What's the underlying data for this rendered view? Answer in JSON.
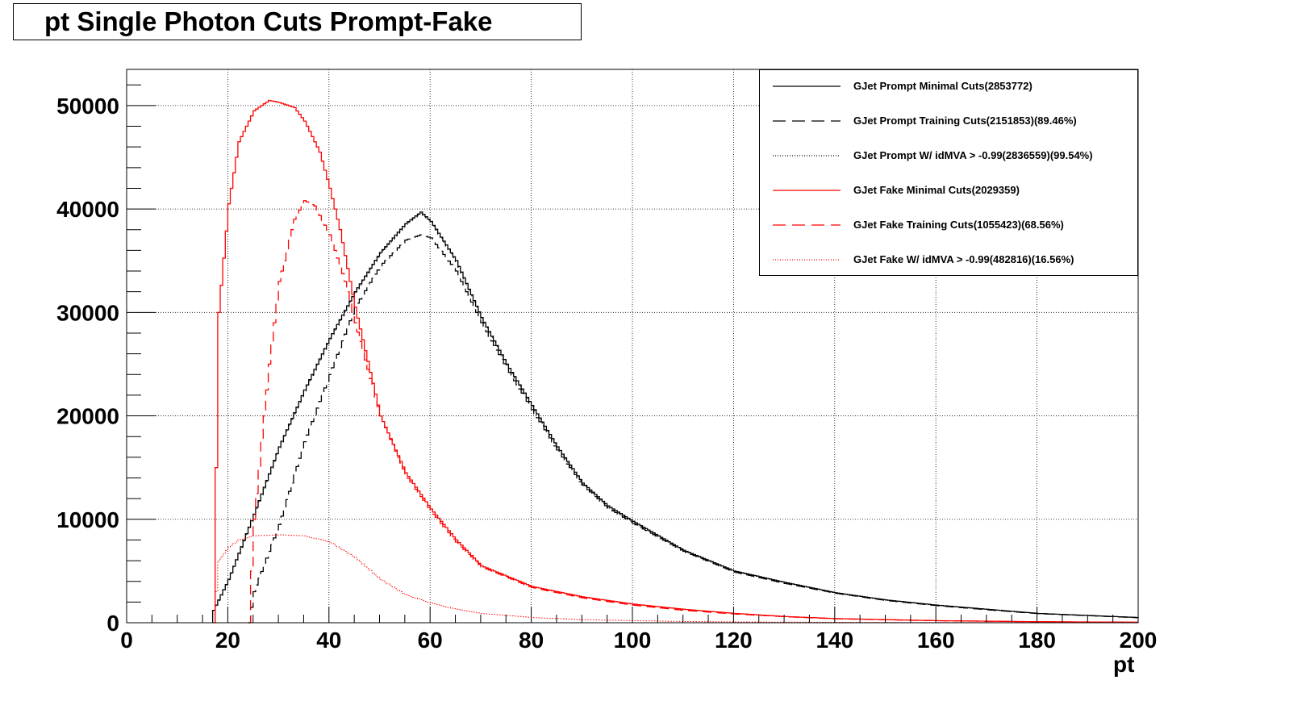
{
  "chart_data": {
    "type": "line",
    "title": "pt Single Photon Cuts Prompt-Fake",
    "xlabel": "pt",
    "ylabel": "",
    "xlim": [
      0,
      200
    ],
    "ylim": [
      0,
      53500
    ],
    "x_ticks": [
      "0",
      "20",
      "40",
      "60",
      "80",
      "100",
      "120",
      "140",
      "160",
      "180",
      "200"
    ],
    "y_ticks": [
      "0",
      "10000",
      "20000",
      "30000",
      "40000",
      "50000"
    ],
    "grid": true,
    "legend_position": "top-right",
    "series": [
      {
        "name": "GJet Prompt Minimal Cuts(2853772)",
        "color": "#000000",
        "style": "solid",
        "x": [
          17,
          20,
          25,
          30,
          35,
          40,
          45,
          50,
          55,
          58,
          60,
          65,
          70,
          75,
          80,
          85,
          90,
          95,
          100,
          110,
          120,
          130,
          140,
          150,
          160,
          170,
          180,
          190,
          200
        ],
        "y": [
          1200,
          4200,
          10500,
          17000,
          22500,
          27500,
          32000,
          35800,
          38600,
          39700,
          38800,
          35000,
          29500,
          25000,
          21000,
          17000,
          13500,
          11300,
          9800,
          7000,
          5000,
          3900,
          2900,
          2200,
          1700,
          1300,
          900,
          700,
          500
        ]
      },
      {
        "name": "GJet Prompt Training Cuts(2151853)(89.46%)",
        "color": "#000000",
        "style": "dashed",
        "x": [
          24,
          25,
          30,
          35,
          40,
          45,
          50,
          55,
          58,
          60,
          65,
          70,
          75,
          80,
          85,
          90,
          95,
          100,
          110,
          120,
          130,
          140,
          150,
          160,
          170,
          180,
          190,
          200
        ],
        "y": [
          0,
          3000,
          9500,
          17500,
          24000,
          30500,
          34500,
          37000,
          37500,
          37200,
          34000,
          29000,
          24600,
          20600,
          16700,
          13300,
          11100,
          9600,
          6900,
          4900,
          3800,
          2850,
          2150,
          1650,
          1250,
          880,
          680,
          480
        ]
      },
      {
        "name": "GJet Prompt W/ idMVA > -0.99(2836559)(99.54%)",
        "color": "#000000",
        "style": "dotted",
        "x": [
          17,
          20,
          25,
          30,
          35,
          40,
          45,
          50,
          55,
          58,
          60,
          65,
          70,
          75,
          80,
          85,
          90,
          95,
          100,
          110,
          120,
          130,
          140,
          150,
          160,
          170,
          180,
          190,
          200
        ],
        "y": [
          1150,
          4150,
          10400,
          16900,
          22400,
          27400,
          31900,
          35700,
          38500,
          39600,
          38700,
          34900,
          29400,
          24900,
          20900,
          16900,
          13400,
          11200,
          9700,
          6950,
          4970,
          3880,
          2880,
          2190,
          1690,
          1290,
          895,
          695,
          495
        ]
      },
      {
        "name": "GJet Fake Minimal Cuts(2029359)",
        "color": "#ff0000",
        "style": "solid",
        "x": [
          17,
          18,
          20,
          22,
          25,
          28,
          30,
          33,
          35,
          38,
          40,
          42,
          45,
          50,
          55,
          60,
          65,
          70,
          75,
          80,
          90,
          100,
          110,
          120,
          130,
          140,
          160,
          180,
          200
        ],
        "y": [
          0,
          30000,
          40500,
          46500,
          49500,
          50500,
          50300,
          49800,
          48500,
          45500,
          42000,
          38000,
          30500,
          20000,
          14500,
          11000,
          8000,
          5500,
          4500,
          3500,
          2500,
          1800,
          1300,
          900,
          600,
          400,
          200,
          100,
          50
        ]
      },
      {
        "name": "GJet Fake Training Cuts(1055423)(68.56%)",
        "color": "#ff0000",
        "style": "dashed",
        "x": [
          24,
          25,
          28,
          30,
          33,
          35,
          37,
          40,
          43,
          45,
          50,
          55,
          60,
          65,
          70,
          75,
          80,
          90,
          100,
          110,
          120,
          130,
          140,
          160,
          180,
          200
        ],
        "y": [
          0,
          10000,
          25000,
          33000,
          39000,
          40800,
          40300,
          37500,
          33000,
          29000,
          20000,
          14300,
          10800,
          7800,
          5400,
          4400,
          3400,
          2400,
          1700,
          1200,
          850,
          580,
          380,
          190,
          90,
          40
        ]
      },
      {
        "name": "GJet Fake W/ idMVA > -0.99(482816)(16.56%)",
        "color": "#ff0000",
        "style": "dotted",
        "x": [
          17,
          18,
          20,
          22,
          25,
          30,
          35,
          40,
          45,
          50,
          55,
          60,
          65,
          70,
          80,
          90,
          100,
          110,
          120,
          140,
          160,
          200
        ],
        "y": [
          0,
          6000,
          7300,
          8000,
          8400,
          8500,
          8400,
          7800,
          6300,
          4200,
          2700,
          1900,
          1300,
          900,
          500,
          300,
          200,
          120,
          80,
          40,
          20,
          10
        ]
      }
    ]
  }
}
